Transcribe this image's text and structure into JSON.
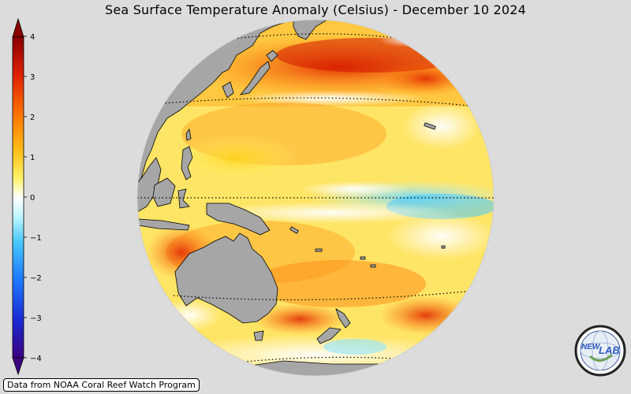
{
  "title": "Sea Surface Temperature Anomaly (Celsius) - December 10 2024",
  "colorbar": {
    "ticks": [
      "4",
      "3",
      "2",
      "1",
      "0",
      "−1",
      "−2",
      "−3",
      "−4"
    ],
    "range": [
      -4,
      4
    ],
    "colors": [
      "#3b0080",
      "#1a2bd6",
      "#1f7dff",
      "#47c8ff",
      "#bff6ff",
      "#ffffff",
      "#fff36a",
      "#ffc21a",
      "#ff7a00",
      "#e02000",
      "#8a0000"
    ]
  },
  "credit": "Data from NOAA Coral Reef Watch Program",
  "logo": {
    "text_left": "NEW",
    "text_right": "LAB",
    "icon": "globe-logo-icon"
  },
  "map": {
    "projection": "orthographic",
    "land_color": "#a6a6a6",
    "gridline_style": "dotted",
    "regions": [
      "east-asia",
      "maritime-continent",
      "australia",
      "new-zealand",
      "antarctica"
    ]
  }
}
